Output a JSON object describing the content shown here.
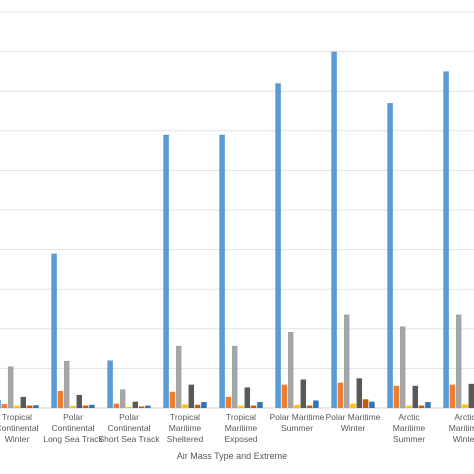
{
  "chart_data": {
    "type": "bar",
    "xlabel": "Air Mass Type and Extreme",
    "ylabel": "",
    "title": "",
    "ylim": [
      0,
      100
    ],
    "grid": true,
    "categories": [
      [
        "Tropical",
        "Continental",
        "Winter"
      ],
      [
        "Polar",
        "Continental",
        "Long Sea Track"
      ],
      [
        "Polar",
        "Continental",
        "Short Sea Track"
      ],
      [
        "Tropical",
        "Maritime",
        "Sheltered"
      ],
      [
        "Tropical",
        "Maritime",
        "Exposed"
      ],
      [
        "Polar Maritime",
        "Summer"
      ],
      [
        "Polar Maritime",
        "Winter"
      ],
      [
        "Arctic",
        "Maritime",
        "Summer"
      ],
      [
        "Arctic",
        "Maritime",
        "Winter"
      ]
    ],
    "series": [
      {
        "color": "#5b9bd5",
        "values": [
          2,
          39,
          12,
          69,
          69,
          82,
          90,
          77,
          85
        ]
      },
      {
        "color": "#ed7d31",
        "values": [
          1,
          4.3,
          1.1,
          4.1,
          2.8,
          5.9,
          6.4,
          5.6,
          5.9
        ]
      },
      {
        "color": "#a5a5a5",
        "values": [
          10.5,
          11.9,
          4.7,
          15.7,
          15.7,
          19.2,
          23.6,
          20.6,
          23.6
        ]
      },
      {
        "color": "#ffc000",
        "values": [
          0.6,
          0.5,
          0.3,
          0.9,
          0.6,
          0.8,
          1.1,
          0.6,
          0.9
        ]
      },
      {
        "color": "#595959",
        "values": [
          2.8,
          3.3,
          1.6,
          5.9,
          5.2,
          7.2,
          7.5,
          5.6,
          6.1
        ]
      },
      {
        "color": "#c55a11",
        "values": [
          0.6,
          0.6,
          0.4,
          0.8,
          0.6,
          0.6,
          2.2,
          0.6,
          1.1
        ]
      },
      {
        "color": "#2e75b6",
        "values": [
          0.7,
          0.8,
          0.6,
          1.5,
          1.5,
          1.9,
          1.6,
          1.5,
          1.8
        ]
      }
    ]
  }
}
